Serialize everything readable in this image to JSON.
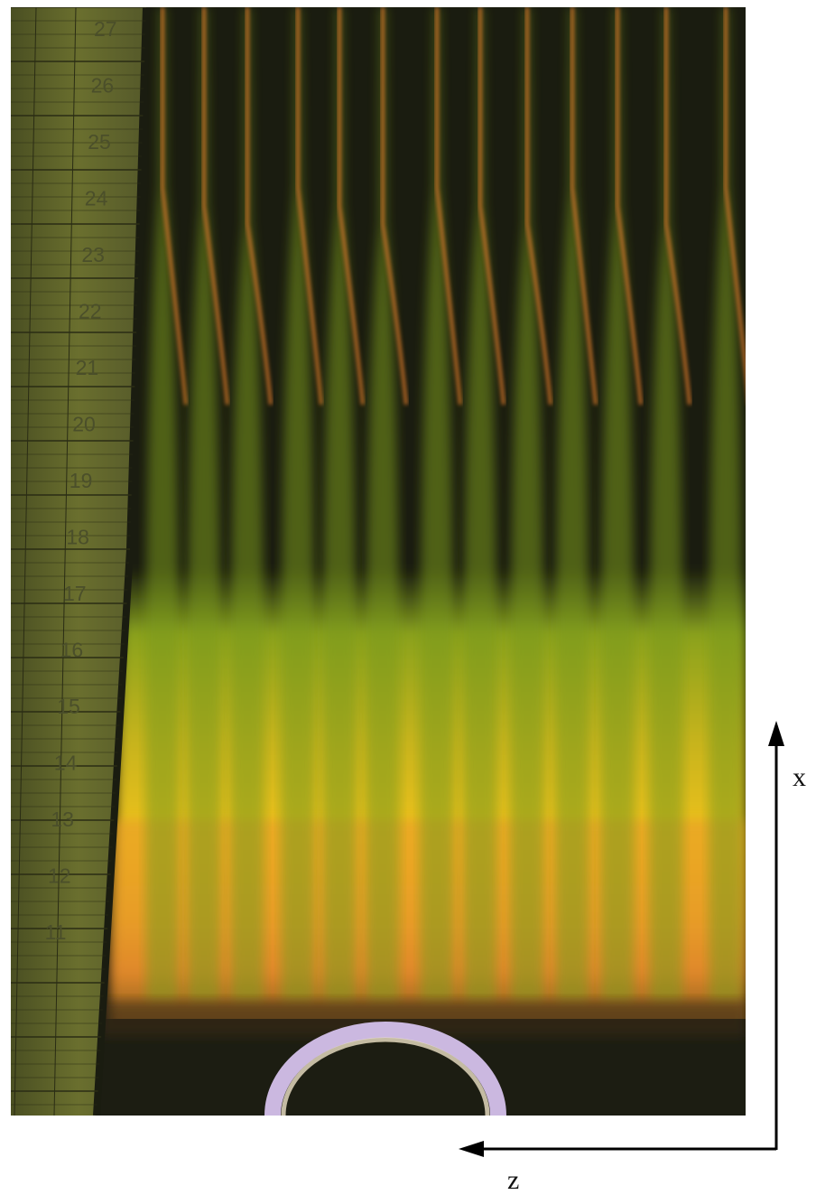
{
  "ruler": {
    "numbers": [
      "27",
      "26",
      "25",
      "24",
      "23",
      "22",
      "21",
      "20",
      "19",
      "18",
      "17",
      "16",
      "15",
      "14",
      "13",
      "12",
      "11"
    ]
  },
  "axes": {
    "vertical_label": "x",
    "horizontal_label": "z"
  },
  "colors": {
    "background": "#1a1c10",
    "ruler": "#5a5f2a",
    "ruler_lines": "#2a2c14",
    "flame_orange": "#e08a26",
    "flame_yellow": "#f0c21a",
    "flame_green": "#7c9a1e",
    "ring": "#cbb8e0",
    "arrow": "#000000"
  }
}
